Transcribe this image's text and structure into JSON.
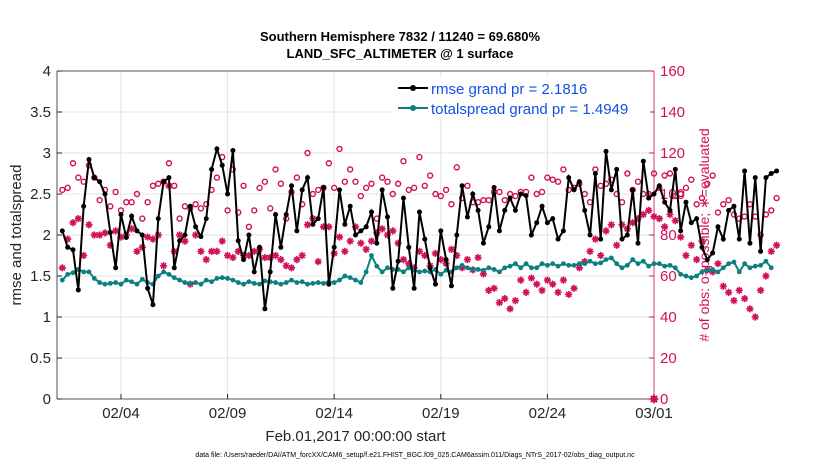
{
  "chart_data": {
    "type": "line",
    "title": "Southern Hemisphere 7832 / 11240 = 69.680%",
    "subtitle": "LAND_SFC_ALTIMETER @ 1 surface",
    "xlabel": "Feb.01,2017 00:00:00 start",
    "ylabel": "rmse and totalspread",
    "ylabel_right": "# of obs: o=possible; ∗=evaluated",
    "footer": "data file: /Users/raeder/DAI/ATM_forcXX/CAM6_setup/f.e21.FHIST_BGC.f09_025.CAM6assim.011/Diags_NTrS_2017-02/obs_diag_output.nc",
    "xlim": [
      1,
      29
    ],
    "ylim": [
      0,
      4
    ],
    "ylim_right": [
      0,
      160
    ],
    "xticks": [
      {
        "day": 4,
        "label": "02/04"
      },
      {
        "day": 9,
        "label": "02/09"
      },
      {
        "day": 14,
        "label": "02/14"
      },
      {
        "day": 19,
        "label": "02/19"
      },
      {
        "day": 24,
        "label": "02/24"
      },
      {
        "day": 29,
        "label": "03/01"
      }
    ],
    "yticks": [
      "0",
      "0.5",
      "1",
      "1.5",
      "2",
      "2.5",
      "3",
      "3.5",
      "4"
    ],
    "yticks_right": [
      "0",
      "20",
      "40",
      "60",
      "80",
      "100",
      "120",
      "140",
      "160"
    ],
    "grid": true,
    "legend_position": "top-right",
    "series": [
      {
        "name": "rmse grand pr = 2.1816",
        "color": "#000000",
        "axis": "left",
        "values": [
          2.05,
          1.85,
          1.82,
          1.33,
          2.35,
          2.92,
          2.7,
          2.65,
          2.5,
          2.03,
          1.6,
          2.25,
          1.97,
          2.23,
          2.05,
          2.0,
          1.35,
          1.15,
          2.2,
          2.65,
          2.7,
          1.6,
          1.93,
          2.0,
          2.35,
          2.1,
          1.98,
          2.2,
          2.8,
          3.05,
          2.85,
          2.5,
          3.03,
          1.93,
          1.7,
          2.0,
          1.55,
          1.85,
          1.1,
          1.55,
          2.25,
          1.85,
          2.25,
          2.6,
          2.05,
          2.55,
          2.7,
          2.13,
          2.2,
          2.58,
          1.4,
          1.85,
          2.55,
          2.13,
          2.35,
          2.0,
          2.05,
          2.1,
          2.28,
          1.9,
          2.55,
          2.22,
          1.35,
          1.68,
          2.45,
          1.85,
          1.35,
          2.28,
          1.95,
          1.6,
          1.4,
          2.05,
          1.7,
          1.38,
          2.0,
          2.6,
          2.22,
          2.5,
          2.3,
          1.9,
          2.1,
          2.58,
          2.05,
          2.3,
          2.45,
          2.3,
          2.5,
          2.48,
          2.0,
          2.15,
          2.35,
          2.15,
          2.2,
          1.95,
          2.05,
          2.7,
          2.55,
          2.65,
          2.3,
          2.0,
          2.75,
          1.95,
          3.02,
          2.55,
          2.8,
          1.95,
          2.0,
          2.55,
          1.9,
          2.9,
          2.45,
          2.5,
          2.6,
          2.4,
          2.3,
          2.8,
          2.05,
          2.4,
          2.15,
          2.2,
          1.85,
          1.7,
          1.78,
          2.1,
          1.95,
          2.3,
          2.35,
          1.95,
          2.78,
          1.9,
          2.7,
          1.8,
          2.7,
          2.75,
          2.78
        ]
      },
      {
        "name": "totalspread grand pr = 1.4949",
        "color": "#0c8080",
        "axis": "left",
        "values": [
          1.45,
          1.52,
          1.54,
          1.58,
          1.55,
          1.55,
          1.47,
          1.42,
          1.4,
          1.41,
          1.42,
          1.4,
          1.45,
          1.43,
          1.4,
          1.46,
          1.42,
          1.4,
          1.5,
          1.55,
          1.52,
          1.48,
          1.45,
          1.42,
          1.41,
          1.42,
          1.4,
          1.45,
          1.43,
          1.47,
          1.48,
          1.47,
          1.45,
          1.42,
          1.4,
          1.43,
          1.41,
          1.4,
          1.44,
          1.43,
          1.42,
          1.4,
          1.42,
          1.45,
          1.42,
          1.43,
          1.4,
          1.41,
          1.42,
          1.41,
          1.43,
          1.42,
          1.45,
          1.5,
          1.48,
          1.45,
          1.42,
          1.55,
          1.75,
          1.62,
          1.55,
          1.6,
          1.58,
          1.58,
          1.55,
          1.6,
          1.57,
          1.55,
          1.56,
          1.55,
          1.58,
          1.52,
          1.57,
          1.55,
          1.6,
          1.63,
          1.6,
          1.58,
          1.58,
          1.57,
          1.6,
          1.58,
          1.55,
          1.6,
          1.62,
          1.65,
          1.6,
          1.65,
          1.6,
          1.6,
          1.65,
          1.63,
          1.65,
          1.62,
          1.65,
          1.63,
          1.63,
          1.65,
          1.65,
          1.68,
          1.65,
          1.66,
          1.7,
          1.72,
          1.65,
          1.6,
          1.63,
          1.7,
          1.65,
          1.68,
          1.62,
          1.65,
          1.65,
          1.62,
          1.63,
          1.6,
          1.52,
          1.5,
          1.48,
          1.5,
          1.55,
          1.57,
          1.58,
          1.55,
          1.6,
          1.65,
          1.67,
          1.55,
          1.65,
          1.6,
          1.62,
          1.63,
          1.68,
          1.6
        ]
      },
      {
        "name": "possible",
        "color": "#d0105a",
        "axis": "right",
        "marker": "circle",
        "values": [
          102,
          103,
          115,
          108,
          106,
          114,
          108,
          97,
          102,
          94,
          101,
          92,
          96,
          96,
          100,
          88,
          96,
          104,
          105,
          106,
          115,
          104,
          88,
          94,
          93,
          95,
          93,
          95,
          102,
          108,
          118,
          92,
          112,
          91,
          104,
          84,
          92,
          103,
          106,
          93,
          112,
          105,
          88,
          101,
          108,
          95,
          120,
          100,
          102,
          103,
          115,
          103,
          122,
          106,
          112,
          106,
          99,
          103,
          105,
          88,
          108,
          106,
          100,
          105,
          116,
          102,
          103,
          118,
          104,
          109,
          100,
          99,
          102,
          95,
          113,
          98,
          104,
          96,
          96,
          97,
          97,
          101,
          101,
          97,
          100,
          99,
          101,
          101,
          108,
          100,
          101,
          108,
          107,
          106,
          112,
          102,
          103,
          105,
          100,
          96,
          112,
          104,
          105,
          107,
          100,
          96,
          110,
          102,
          106,
          100,
          100,
          110,
          103,
          109,
          110,
          99,
          100,
          103,
          107,
          95,
          98,
          105,
          109,
          91,
          95,
          97,
          90,
          88,
          89,
          95,
          89,
          80,
          90,
          92,
          98
        ]
      },
      {
        "name": "evaluated",
        "color": "#d0105a",
        "axis": "right",
        "marker": "star",
        "values": [
          64,
          78,
          86,
          88,
          70,
          85,
          80,
          80,
          81,
          75,
          82,
          79,
          80,
          83,
          72,
          74,
          79,
          78,
          80,
          65,
          104,
          72,
          80,
          77,
          56,
          80,
          72,
          68,
          72,
          72,
          77,
          70,
          69,
          72,
          70,
          70,
          72,
          73,
          69,
          69,
          70,
          68,
          65,
          64,
          68,
          70,
          85,
          88,
          67,
          84,
          84,
          71,
          79,
          72,
          77,
          84,
          76,
          73,
          77,
          81,
          83,
          80,
          82,
          76,
          68,
          66,
          64,
          72,
          70,
          65,
          71,
          68,
          66,
          73,
          70,
          64,
          68,
          63,
          69,
          61,
          53,
          54,
          47,
          49,
          44,
          48,
          58,
          52,
          59,
          56,
          53,
          58,
          56,
          52,
          58,
          51,
          54,
          64,
          67,
          72,
          78,
          70,
          82,
          85,
          75,
          85,
          83,
          86,
          88,
          90,
          92,
          89,
          88,
          84,
          90,
          87,
          79,
          70,
          75,
          68,
          77,
          63,
          62,
          66,
          55,
          52,
          48,
          53,
          49,
          44,
          40,
          53,
          60,
          72,
          75
        ]
      }
    ]
  }
}
